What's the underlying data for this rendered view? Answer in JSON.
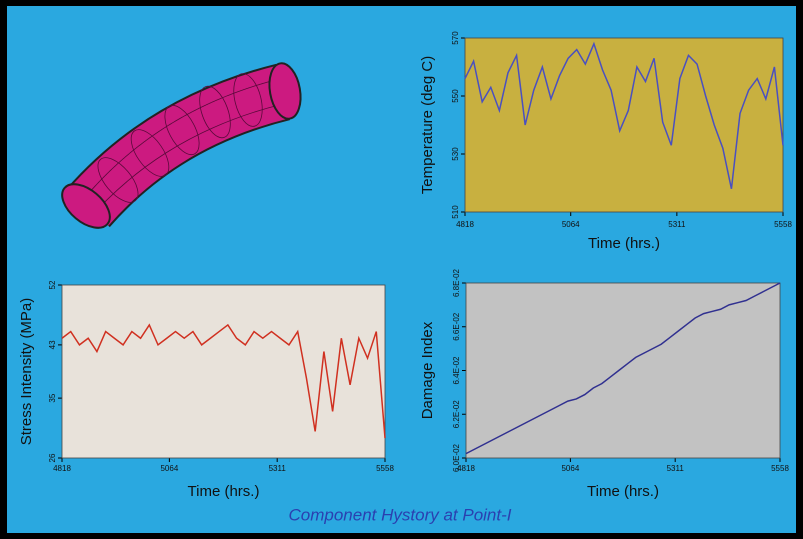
{
  "chart_data": [
    {
      "type": "line",
      "ylabel": "Temperature (deg C)",
      "xlabel": "Time (hrs.)",
      "x": [
        4818,
        4838,
        4858,
        4878,
        4898,
        4918,
        4938,
        4958,
        4978,
        4998,
        5018,
        5038,
        5058,
        5078,
        5098,
        5118,
        5138,
        5158,
        5178,
        5198,
        5218,
        5238,
        5258,
        5278,
        5298,
        5318,
        5338,
        5358,
        5378,
        5398,
        5418,
        5438,
        5458,
        5478,
        5498,
        5518,
        5538,
        5558
      ],
      "values": [
        556,
        562,
        548,
        553,
        545,
        558,
        564,
        540,
        552,
        560,
        549,
        557,
        563,
        566,
        561,
        568,
        559,
        552,
        538,
        545,
        560,
        555,
        563,
        541,
        533,
        556,
        564,
        561,
        550,
        540,
        532,
        518,
        544,
        552,
        556,
        549,
        560,
        533
      ],
      "color": "#4a50c0",
      "plot_background": "#c8b040",
      "xlim": [
        4818,
        5558
      ],
      "xticks": [
        4818,
        5064,
        5311,
        5558
      ],
      "ylim": [
        510,
        570
      ],
      "yticks": [
        510,
        530,
        550,
        570
      ]
    },
    {
      "type": "line",
      "ylabel": "Stress Intensity (MPa)",
      "xlabel": "Time (hrs.)",
      "x": [
        4818,
        4838,
        4858,
        4878,
        4898,
        4918,
        4938,
        4958,
        4978,
        4998,
        5018,
        5038,
        5058,
        5078,
        5098,
        5118,
        5138,
        5158,
        5178,
        5198,
        5218,
        5238,
        5258,
        5278,
        5298,
        5318,
        5338,
        5358,
        5378,
        5398,
        5418,
        5438,
        5458,
        5478,
        5498,
        5518,
        5538,
        5558
      ],
      "values": [
        44,
        45,
        43,
        44,
        42,
        45,
        44,
        43,
        45,
        44,
        46,
        43,
        44,
        45,
        44,
        45,
        43,
        44,
        45,
        46,
        44,
        43,
        45,
        44,
        45,
        44,
        43,
        45,
        38,
        30,
        42,
        33,
        44,
        37,
        44,
        41,
        45,
        29
      ],
      "color": "#d03020",
      "plot_background": "#e8e2da",
      "xlim": [
        4818,
        5558
      ],
      "xticks": [
        4818,
        5064,
        5311,
        5558
      ],
      "ylim": [
        26,
        52
      ],
      "yticks": [
        26,
        35,
        43,
        52
      ]
    },
    {
      "type": "line",
      "ylabel": "Damage Index",
      "xlabel": "Time (hrs.)",
      "x": [
        4818,
        4838,
        4858,
        4878,
        4898,
        4918,
        4938,
        4958,
        4978,
        4998,
        5018,
        5038,
        5058,
        5078,
        5098,
        5118,
        5138,
        5158,
        5178,
        5198,
        5218,
        5238,
        5258,
        5278,
        5298,
        5318,
        5338,
        5358,
        5378,
        5398,
        5418,
        5438,
        5458,
        5478,
        5498,
        5518,
        5538,
        5558
      ],
      "values": [
        0.0602,
        0.0604,
        0.0606,
        0.0608,
        0.061,
        0.0612,
        0.0614,
        0.0616,
        0.0618,
        0.062,
        0.0622,
        0.0624,
        0.0626,
        0.0627,
        0.0629,
        0.0632,
        0.0634,
        0.0637,
        0.064,
        0.0643,
        0.0646,
        0.0648,
        0.065,
        0.0652,
        0.0655,
        0.0658,
        0.0661,
        0.0664,
        0.0666,
        0.0667,
        0.0668,
        0.067,
        0.0671,
        0.0672,
        0.0674,
        0.0676,
        0.0678,
        0.068
      ],
      "color": "#303090",
      "plot_background": "#c2c2c2",
      "xlim": [
        4818,
        5558
      ],
      "xticks": [
        4818,
        5064,
        5311,
        5558
      ],
      "ylim": [
        0.06,
        0.068
      ],
      "yticks": [
        {
          "value": 0.06,
          "label": "6.0E-02"
        },
        {
          "value": 0.062,
          "label": "6.2E-02"
        },
        {
          "value": 0.064,
          "label": "6.4E-02"
        },
        {
          "value": 0.066,
          "label": "6.6E-02"
        },
        {
          "value": 0.068,
          "label": "6.8E-02"
        }
      ]
    }
  ],
  "caption": "Component Hystory at Point-I"
}
